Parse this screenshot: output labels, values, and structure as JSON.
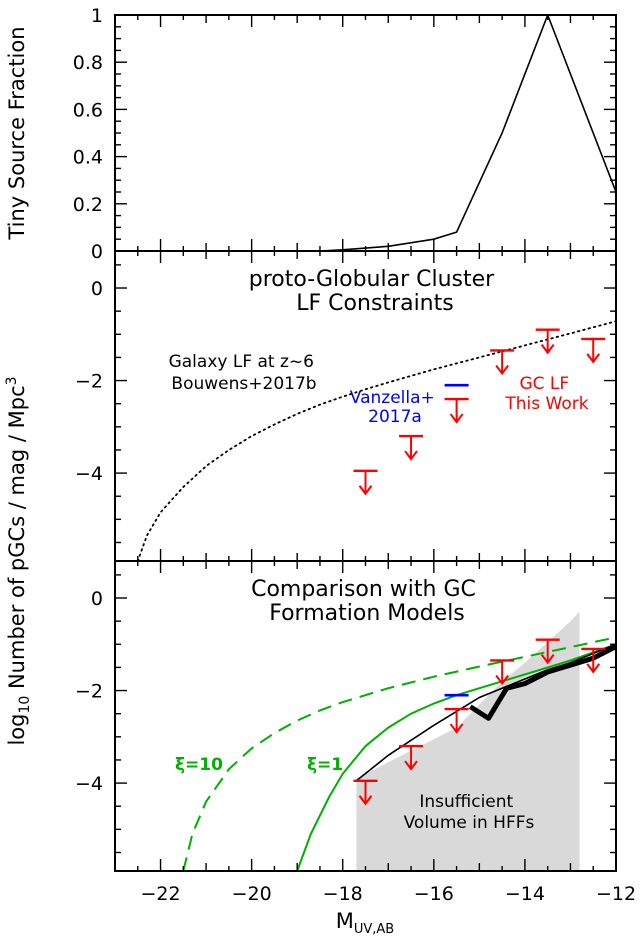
{
  "chart_data": [
    {
      "type": "line",
      "panel": "top",
      "title": "",
      "xlabel": "",
      "ylabel": "Tiny Source Fraction",
      "xlim": [
        -23,
        -12
      ],
      "ylim": [
        0,
        1
      ],
      "yticks": [
        0,
        0.2,
        0.4,
        0.6,
        0.8,
        1
      ],
      "ytick_labels": [
        "0",
        "0.2",
        "0.4",
        "0.6",
        "0.8",
        "1"
      ],
      "series": [
        {
          "x": [
            -18.5,
            -18,
            -17,
            -16,
            -15.5,
            -14.5,
            -13.5,
            -12.5,
            -12
          ],
          "y": [
            0.0,
            0.005,
            0.02,
            0.05,
            0.08,
            0.5,
            1.0,
            0.5,
            0.25
          ],
          "color": "#000000"
        }
      ]
    },
    {
      "type": "scatter",
      "panel": "middle",
      "title": "proto-Globular Cluster LF Constraints",
      "title_lines": [
        "proto-Globular Cluster",
        "LF Constraints"
      ],
      "ylabel": "log10 Number of pGCs / mag / Mpc3",
      "ylim": [
        -5.9,
        0.8
      ],
      "yticks": [
        -4,
        -2,
        0
      ],
      "ytick_labels": [
        "−4",
        "−2",
        "0"
      ],
      "galaxy_lf": {
        "label_lines": [
          "Galaxy LF at z~6",
          "Bouwens+2017b"
        ],
        "style": "dotted",
        "x": [
          -22.5,
          -22.3,
          -22.0,
          -21.5,
          -21.0,
          -20.5,
          -20.0,
          -19.5,
          -19.0,
          -18.5,
          -18.0,
          -17.5,
          -17.0,
          -16.5,
          -16.0,
          -15.5,
          -15.0,
          -14.5,
          -14.0,
          -13.5,
          -13.0,
          -12.5,
          -12.0
        ],
        "y": [
          -5.9,
          -5.35,
          -4.85,
          -4.3,
          -3.85,
          -3.5,
          -3.2,
          -2.95,
          -2.72,
          -2.52,
          -2.35,
          -2.19,
          -2.04,
          -1.9,
          -1.76,
          -1.63,
          -1.5,
          -1.37,
          -1.24,
          -1.11,
          -0.98,
          -0.85,
          -0.72
        ]
      },
      "gc_upper_limits": {
        "label_lines": [
          "GC LF",
          "This Work"
        ],
        "color": "#ff0000",
        "x": [
          -17.5,
          -16.5,
          -15.5,
          -14.5,
          -13.5,
          -12.5
        ],
        "y": [
          -3.95,
          -3.2,
          -2.4,
          -1.35,
          -0.9,
          -1.1
        ]
      },
      "vanzella": {
        "label_lines": [
          "Vanzella+",
          "2017a"
        ],
        "color": "#0000ff",
        "x": -15.5,
        "y": -2.1
      }
    },
    {
      "type": "line",
      "panel": "bottom",
      "title_lines": [
        "Comparison with GC",
        "Formation Models"
      ],
      "xlabel": "MUV,AB",
      "xticks": [
        -22,
        -20,
        -18,
        -16,
        -14,
        -12
      ],
      "xtick_labels": [
        "−22",
        "−20",
        "−18",
        "−16",
        "−14",
        "−12"
      ],
      "ylim": [
        -5.9,
        0.8
      ],
      "yticks": [
        -4,
        -2,
        0
      ],
      "ytick_labels": [
        "−4",
        "−2",
        "0"
      ],
      "insufficient_region": {
        "label_lines": [
          "Insufficient",
          "Volume in HFFs"
        ],
        "color": "#d9d9d9",
        "x": [
          -17.7,
          -15.5,
          -15.0,
          -14.5,
          -14.0,
          -13.5,
          -13.0,
          -12.8,
          -12.8,
          -17.7
        ],
        "y": [
          -3.9,
          -2.8,
          -2.3,
          -1.8,
          -1.4,
          -0.95,
          -0.5,
          -0.3,
          -5.9,
          -5.9
        ]
      },
      "models": [
        {
          "name": "ξ=10",
          "style": "dashed",
          "color": "#00b000",
          "x": [
            -21.5,
            -21.3,
            -21.0,
            -20.5,
            -20.0,
            -19.5,
            -19.0,
            -18.5,
            -18.0,
            -17.0,
            -16.0,
            -15.0,
            -14.0,
            -13.0,
            -12.0
          ],
          "y": [
            -5.9,
            -5.1,
            -4.4,
            -3.7,
            -3.25,
            -2.92,
            -2.65,
            -2.43,
            -2.25,
            -1.95,
            -1.7,
            -1.48,
            -1.27,
            -1.06,
            -0.85
          ]
        },
        {
          "name": "ξ=1",
          "style": "solid",
          "color": "#00b000",
          "x": [
            -19.0,
            -18.7,
            -18.3,
            -18.0,
            -17.5,
            -17.0,
            -16.5,
            -16.0,
            -15.5,
            -15.0,
            -14.5,
            -14.0,
            -13.0,
            -12.0
          ],
          "y": [
            -5.9,
            -5.1,
            -4.3,
            -3.8,
            -3.2,
            -2.8,
            -2.5,
            -2.28,
            -2.1,
            -1.95,
            -1.8,
            -1.65,
            -1.35,
            -1.0
          ]
        }
      ],
      "black_thin": {
        "x": [
          -17.7,
          -17.0,
          -16.0,
          -15.5,
          -15.0,
          -14.5,
          -14.0,
          -13.5,
          -13.0,
          -12.5,
          -12.0
        ],
        "y": [
          -3.95,
          -3.4,
          -2.75,
          -2.45,
          -2.15,
          -1.95,
          -1.75,
          -1.55,
          -1.4,
          -1.2,
          -1.0
        ]
      },
      "black_thick": {
        "x": [
          -15.2,
          -14.8,
          -14.4,
          -14.0,
          -13.5,
          -13.0,
          -12.5,
          -12.0
        ],
        "y": [
          -2.35,
          -2.6,
          -1.95,
          -1.85,
          -1.6,
          -1.45,
          -1.3,
          -1.05
        ]
      },
      "gc_upper_limits": {
        "color": "#ff0000",
        "x": [
          -17.5,
          -16.5,
          -15.5,
          -14.5,
          -13.5,
          -12.5
        ],
        "y": [
          -3.95,
          -3.2,
          -2.4,
          -1.35,
          -0.9,
          -1.1
        ]
      },
      "vanzella": {
        "color": "#0000ff",
        "x": -15.5,
        "y": -2.1
      }
    }
  ]
}
